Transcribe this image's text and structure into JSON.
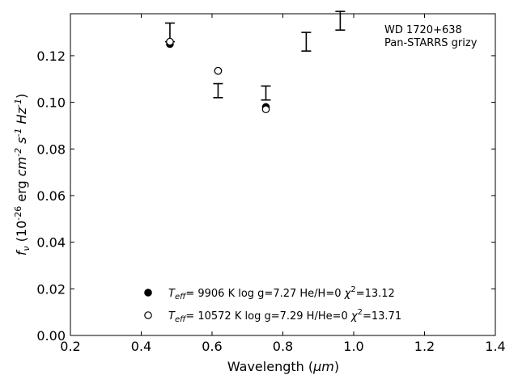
{
  "chart_data": {
    "type": "scatter",
    "xlabel_main": "Wavelength (",
    "xlabel_unit": "μm",
    "xlabel_close": ")",
    "xlim": [
      0.2,
      1.4
    ],
    "ylim": [
      0.0,
      0.138
    ],
    "x_ticks": [
      0.2,
      0.4,
      0.6,
      0.8,
      1.0,
      1.2,
      1.4
    ],
    "x_tick_labels": [
      "0.2",
      "0.4",
      "0.6",
      "0.8",
      "1.0",
      "1.2",
      "1.4"
    ],
    "y_ticks": [
      0.0,
      0.02,
      0.04,
      0.06,
      0.08,
      0.1,
      0.12
    ],
    "y_tick_labels": [
      "0.00",
      "0.02",
      "0.04",
      "0.06",
      "0.08",
      "0.10",
      "0.12"
    ],
    "ylabel": "f_ν (10^-26 erg cm^-2 s^-1 Hz^-1)",
    "annotation": [
      "WD 1720+638",
      "Pan-STARRS grizy"
    ],
    "observed": {
      "x": [
        0.481,
        0.617,
        0.752,
        0.866,
        0.962
      ],
      "y": [
        0.13,
        0.105,
        0.104,
        0.126,
        0.135
      ],
      "yerr": [
        0.004,
        0.003,
        0.003,
        0.004,
        0.004
      ]
    },
    "series": [
      {
        "name": "Teff= 9906 K log g=7.27 He/H=0 χ2=13.12",
        "marker": "filled",
        "x": [
          0.481,
          0.617,
          0.752
        ],
        "y": [
          0.125,
          0.1135,
          0.098
        ]
      },
      {
        "name": "Teff= 10572 K log g=7.29 H/He=0 χ2=13.71",
        "marker": "open",
        "x": [
          0.481,
          0.617,
          0.752
        ],
        "y": [
          0.126,
          0.1135,
          0.097
        ]
      }
    ],
    "legend": [
      {
        "teff": "9906 K",
        "logg": "log g=7.27",
        "comp": "He/H=0",
        "chi": "=13.12"
      },
      {
        "teff": "10572 K",
        "logg": "log g=7.29",
        "comp": "H/He=0",
        "chi": "=13.71"
      }
    ],
    "legend_placement": "bottom-center",
    "grid": false,
    "colors": {
      "marker": "#000000",
      "errorbar": "#000000",
      "axes": "#000000"
    }
  }
}
